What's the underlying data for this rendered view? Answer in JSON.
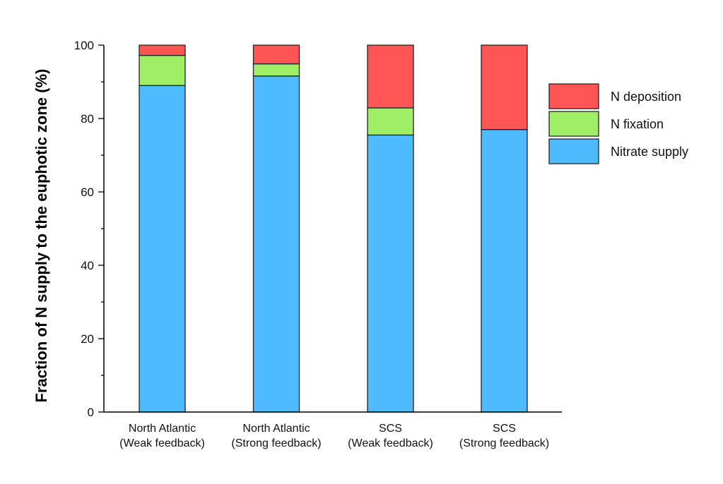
{
  "chart_data": {
    "type": "bar",
    "stacked": true,
    "title": "",
    "xlabel": "",
    "ylabel": "Fraction of N supply to the euphotic zone (%)",
    "ylim": [
      0,
      100
    ],
    "yticks": [
      0,
      20,
      40,
      60,
      80,
      100
    ],
    "categories": [
      [
        "North Atlantic",
        "(Weak feedback)"
      ],
      [
        "North Atlantic",
        "(Strong feedback)"
      ],
      [
        "SCS",
        "(Weak feedback)"
      ],
      [
        "SCS",
        "(Strong feedback)"
      ]
    ],
    "series": [
      {
        "name": "Nitrate supply",
        "color": "#4fbbff",
        "values": [
          89.0,
          91.6,
          75.5,
          77.0
        ]
      },
      {
        "name": "N fixation",
        "color": "#9fee66",
        "values": [
          8.2,
          3.3,
          7.4,
          0
        ]
      },
      {
        "name": "N deposition",
        "color": "#ff5555",
        "values": [
          2.8,
          5.1,
          17.1,
          23.0
        ]
      }
    ],
    "legend": {
      "placement": "right",
      "order": [
        "N deposition",
        "N fixation",
        "Nitrate supply"
      ]
    },
    "grid": false
  }
}
